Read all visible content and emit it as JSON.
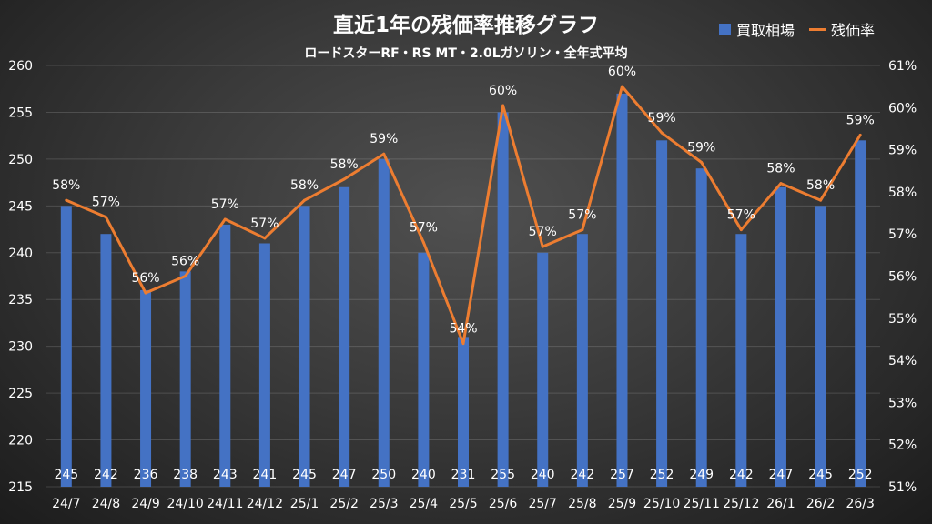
{
  "chart_data": {
    "type": "bar+line",
    "title": "直近1年の残価率推移グラフ",
    "subtitle": "ロードスターRF・RS MT・2.0Lガソリン・全年式平均",
    "categories": [
      "24/7",
      "24/8",
      "24/9",
      "24/10",
      "24/11",
      "24/12",
      "25/1",
      "25/2",
      "25/3",
      "25/4",
      "25/5",
      "25/6",
      "25/7",
      "25/8",
      "25/9",
      "25/10",
      "25/11",
      "25/12",
      "26/1",
      "26/2",
      "26/3"
    ],
    "series": [
      {
        "name": "買取相場",
        "type": "bar",
        "axis": "left",
        "color": "#4472c4",
        "values": [
          245,
          242,
          236,
          238,
          243,
          241,
          245,
          247,
          250,
          240,
          231,
          255,
          240,
          242,
          257,
          252,
          249,
          242,
          247,
          245,
          252
        ]
      },
      {
        "name": "残価率",
        "type": "line",
        "axis": "right",
        "color": "#ed7d31",
        "values": [
          57.8,
          57.4,
          55.6,
          56.0,
          57.35,
          56.9,
          57.8,
          58.3,
          58.9,
          56.8,
          54.4,
          60.05,
          56.7,
          57.1,
          60.5,
          59.4,
          58.7,
          57.1,
          58.2,
          57.8,
          59.35
        ],
        "labels": [
          "58%",
          "57%",
          "56%",
          "56%",
          "57%",
          "57%",
          "58%",
          "58%",
          "59%",
          "57%",
          "54%",
          "60%",
          "57%",
          "57%",
          "60%",
          "59%",
          "59%",
          "57%",
          "58%",
          "58%",
          "59%"
        ]
      }
    ],
    "left_axis": {
      "min": 215,
      "max": 260,
      "step": 5,
      "ticks": [
        "215",
        "220",
        "225",
        "230",
        "235",
        "240",
        "245",
        "250",
        "255",
        "260"
      ]
    },
    "right_axis": {
      "min": 51,
      "max": 61,
      "step": 1,
      "ticks": [
        "51%",
        "52%",
        "53%",
        "54%",
        "55%",
        "56%",
        "57%",
        "58%",
        "59%",
        "60%",
        "61%"
      ]
    },
    "legend": "top-right",
    "grid": true
  }
}
